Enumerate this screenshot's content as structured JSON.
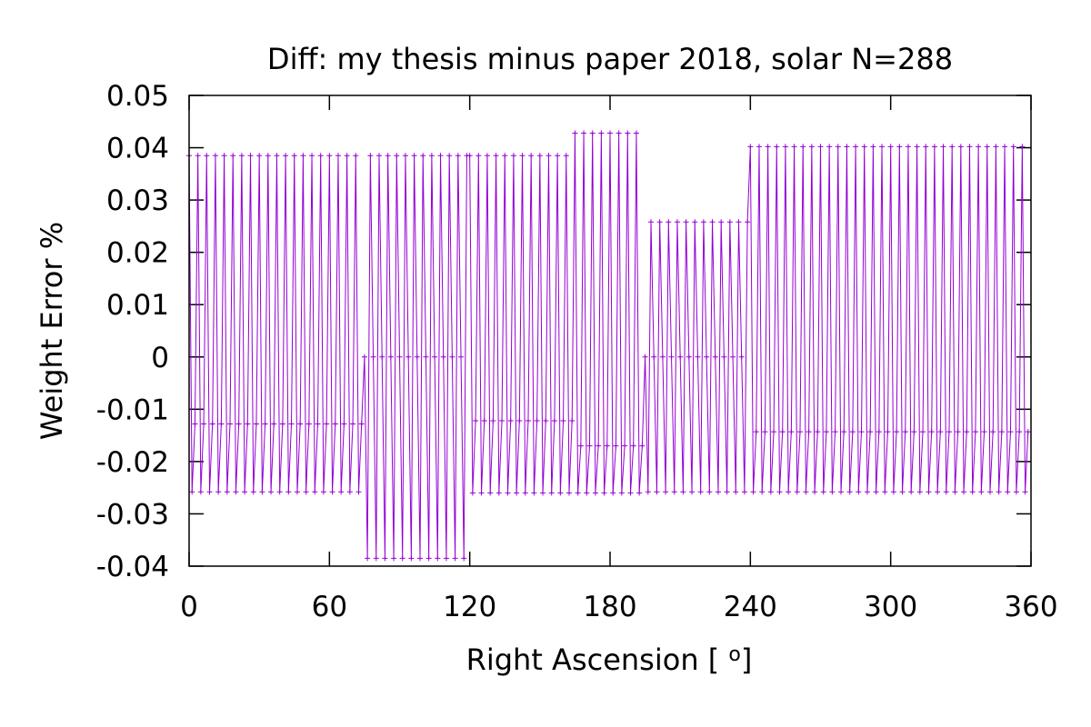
{
  "chart_data": {
    "type": "line",
    "title": "Diff:  my thesis minus paper 2018, solar N=288",
    "xlabel": "Right Ascension [o]",
    "ylabel": "Weight Error %",
    "xlim": [
      0,
      360
    ],
    "ylim": [
      -0.04,
      0.05
    ],
    "x_ticks": [
      0,
      60,
      120,
      180,
      240,
      300,
      360
    ],
    "x_tick_labels": [
      "0",
      "60",
      "120",
      "180",
      "240",
      "300",
      "360"
    ],
    "y_ticks": [
      -0.04,
      -0.03,
      -0.02,
      -0.01,
      0,
      0.01,
      0.02,
      0.03,
      0.04,
      0.05
    ],
    "y_tick_labels": [
      "-0.04",
      "-0.03",
      "-0.02",
      "-0.01",
      "0",
      "0.01",
      "0.02",
      "0.03",
      "0.04",
      "0.05"
    ],
    "grid": false,
    "legend": "none",
    "point_style": "plus",
    "line_color": "#9400d3",
    "series": [
      {
        "segments": [
          {
            "x_start": 0,
            "x_end": 75,
            "period": 3.75,
            "pattern": [
              0.04,
              -0.026,
              -0.013
            ],
            "values": [
              0.0385,
              -0.0258,
              -0.0128
            ]
          },
          {
            "x_start": 75,
            "x_end": 120,
            "period": 3.75,
            "pattern": [
              0.0,
              -0.038,
              0.038
            ],
            "values": [
              0.0,
              -0.0385,
              0.0385
            ]
          },
          {
            "x_start": 120,
            "x_end": 165,
            "period": 3.75,
            "pattern": [
              0.038,
              -0.026,
              -0.012
            ],
            "values": [
              0.0385,
              -0.026,
              -0.0122
            ]
          },
          {
            "x_start": 165,
            "x_end": 195,
            "period": 3.75,
            "pattern": [
              0.0428,
              -0.026,
              -0.017
            ],
            "values": [
              0.0428,
              -0.026,
              -0.017
            ]
          },
          {
            "x_start": 195,
            "x_end": 240,
            "period": 3.75,
            "pattern": [
              0.0,
              -0.026,
              0.026
            ],
            "values": [
              0.0,
              -0.0258,
              0.0258
            ]
          },
          {
            "x_start": 240,
            "x_end": 360,
            "period": 3.75,
            "pattern": [
              0.04,
              -0.026,
              -0.0145
            ],
            "values": [
              0.0402,
              -0.0258,
              -0.0143
            ]
          }
        ]
      }
    ]
  }
}
